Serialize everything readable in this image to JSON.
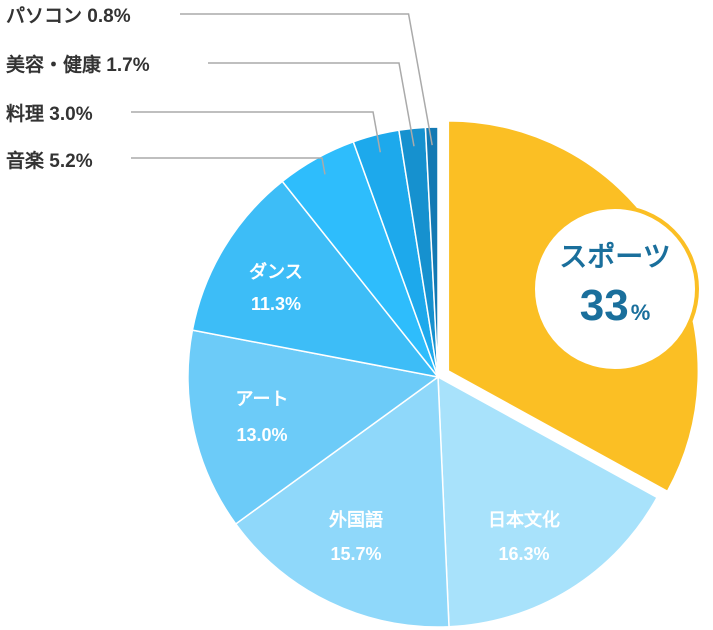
{
  "chart_data": {
    "type": "pie",
    "categories": [
      "スポーツ",
      "日本文化",
      "外国語",
      "アート",
      "ダンス",
      "音楽",
      "料理",
      "美容・健康",
      "パソコン"
    ],
    "values": [
      33,
      16.3,
      15.7,
      13.0,
      11.3,
      5.2,
      3.0,
      1.7,
      0.8
    ],
    "value_labels": [
      "33",
      "16.3%",
      "15.7%",
      "13.0%",
      "11.3%",
      "5.2%",
      "3.0%",
      "1.7%",
      "0.8%"
    ],
    "unit": "%",
    "colors": [
      "#fbbf24",
      "#a8e2fb",
      "#8fd8fa",
      "#6ccbf8",
      "#3dbdf7",
      "#2ebdfc",
      "#1da9ec",
      "#1691cf",
      "#1379b3"
    ],
    "highlight": {
      "category": "スポーツ",
      "value": "33",
      "unit": "%",
      "accent": "#fbbf24",
      "text_color": "#1a6f9c"
    },
    "external_labels": [
      "パソコン 0.8%",
      "美容・健康 1.7%",
      "料理 3.0%",
      "音楽 5.2%"
    ],
    "legend": "none"
  }
}
